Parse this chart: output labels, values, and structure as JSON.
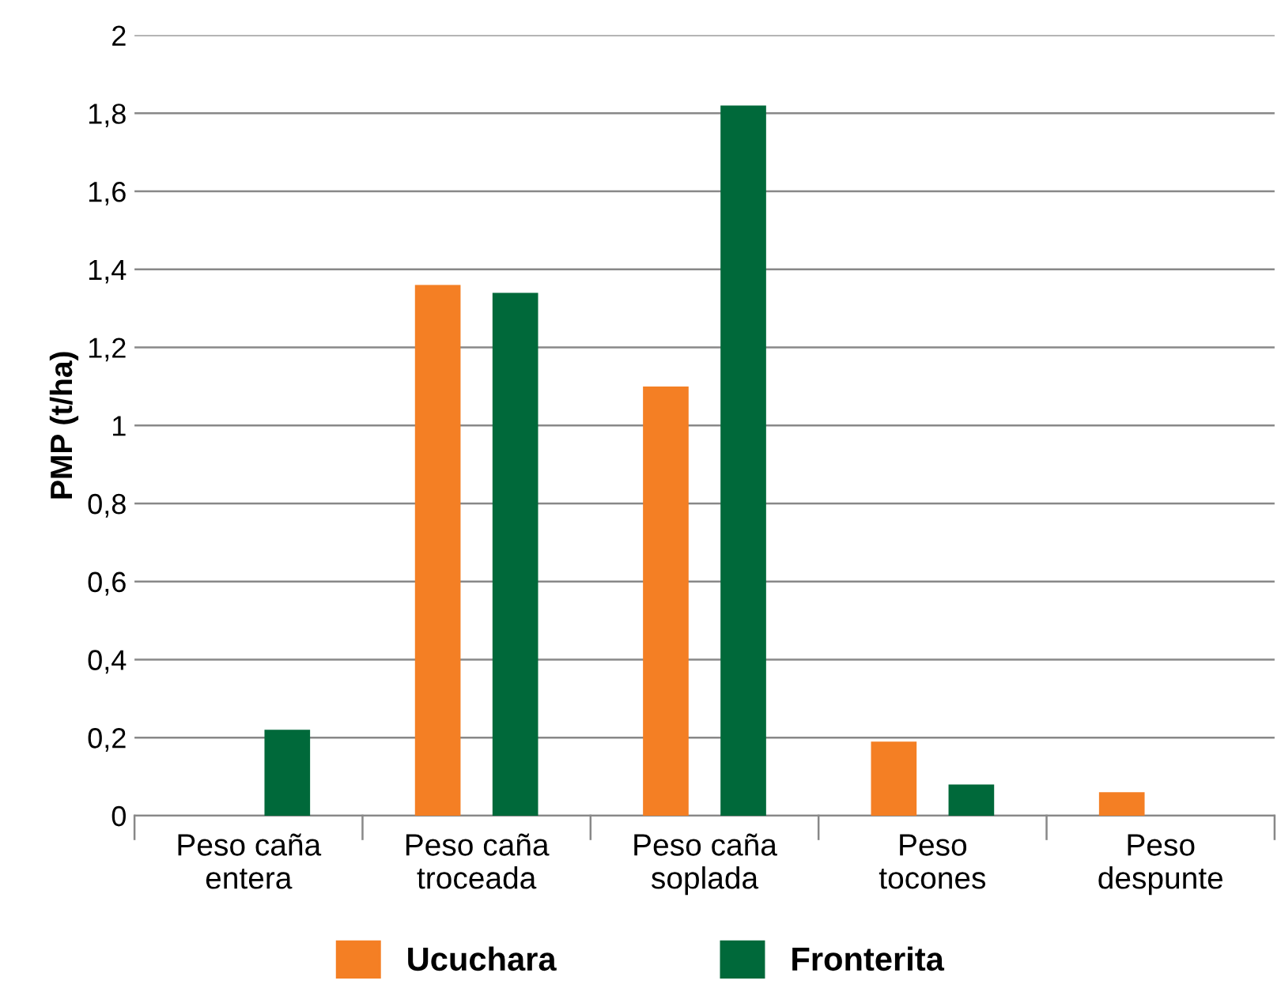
{
  "chart_data": {
    "type": "bar",
    "ylabel": "PMP (t/ha)",
    "categories": [
      "Peso caña\nentera",
      "Peso caña\ntroceada",
      "Peso caña\nsoplada",
      "Peso\ntocones",
      "Peso\ndespunte"
    ],
    "series": [
      {
        "name": "Ucuchara",
        "color": "#f47f24",
        "values": [
          null,
          1.36,
          1.1,
          0.19,
          0.06
        ]
      },
      {
        "name": "Fronterita",
        "color": "#00693a",
        "values": [
          0.22,
          1.34,
          1.82,
          0.08,
          null
        ]
      }
    ],
    "ylim": [
      0,
      2
    ],
    "yticks": [
      0,
      {
        "value": 0.2,
        "label": "0,2"
      },
      {
        "value": 0.4,
        "label": "0,4"
      },
      {
        "value": 0.6,
        "label": "0,6"
      },
      {
        "value": 0.8,
        "label": "0,8"
      },
      1,
      {
        "value": 1.2,
        "label": "1,2"
      },
      {
        "value": 1.4,
        "label": "1,4"
      },
      {
        "value": 1.6,
        "label": "1,6"
      },
      {
        "value": 1.8,
        "label": "1,8"
      },
      2
    ],
    "grid": "y",
    "legend": "bottom"
  }
}
